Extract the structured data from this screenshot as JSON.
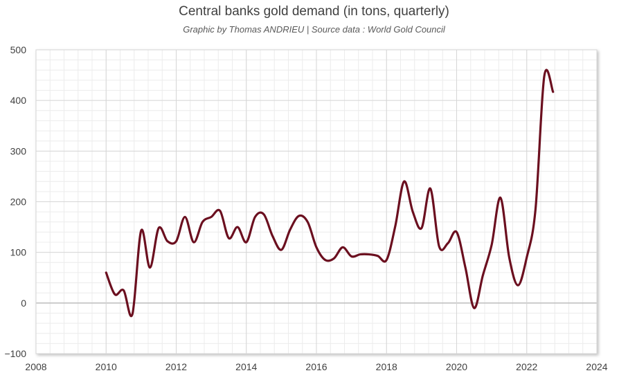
{
  "chart_data": {
    "type": "line",
    "title": "Central banks gold demand (in tons, quarterly)",
    "subtitle": "Graphic by Thomas ANDRIEU | Source data : World Gold Council",
    "xlabel": "",
    "ylabel": "",
    "xlim": [
      2008,
      2024
    ],
    "ylim": [
      -100,
      500
    ],
    "x_ticks": [
      2008,
      2010,
      2012,
      2014,
      2016,
      2018,
      2020,
      2022,
      2024
    ],
    "y_ticks": [
      -100,
      0,
      100,
      200,
      300,
      400,
      500
    ],
    "grid": true,
    "legend": "none",
    "line_color": "#6b0f1f",
    "series": [
      {
        "x": [
          2010.0,
          2010.25,
          2010.5,
          2010.75,
          2011.0,
          2011.25,
          2011.5,
          2011.75,
          2012.0,
          2012.25,
          2012.5,
          2012.75,
          2013.0,
          2013.25,
          2013.5,
          2013.75,
          2014.0,
          2014.25,
          2014.5,
          2014.75,
          2015.0,
          2015.25,
          2015.5,
          2015.75,
          2016.0,
          2016.25,
          2016.5,
          2016.75,
          2017.0,
          2017.25,
          2017.5,
          2017.75,
          2018.0,
          2018.25,
          2018.5,
          2018.75,
          2019.0,
          2019.25,
          2019.5,
          2019.75,
          2020.0,
          2020.25,
          2020.5,
          2020.75,
          2021.0,
          2021.25,
          2021.5,
          2021.75,
          2022.0,
          2022.25,
          2022.5,
          2022.75
        ],
        "values": [
          60,
          17,
          25,
          -22,
          143,
          70,
          148,
          122,
          122,
          170,
          120,
          160,
          170,
          182,
          128,
          150,
          120,
          170,
          175,
          132,
          105,
          145,
          172,
          160,
          110,
          85,
          88,
          110,
          92,
          96,
          96,
          93,
          85,
          152,
          240,
          180,
          148,
          226,
          112,
          118,
          140,
          70,
          -10,
          55,
          115,
          208,
          90,
          35,
          90,
          185,
          448,
          417
        ]
      }
    ]
  }
}
